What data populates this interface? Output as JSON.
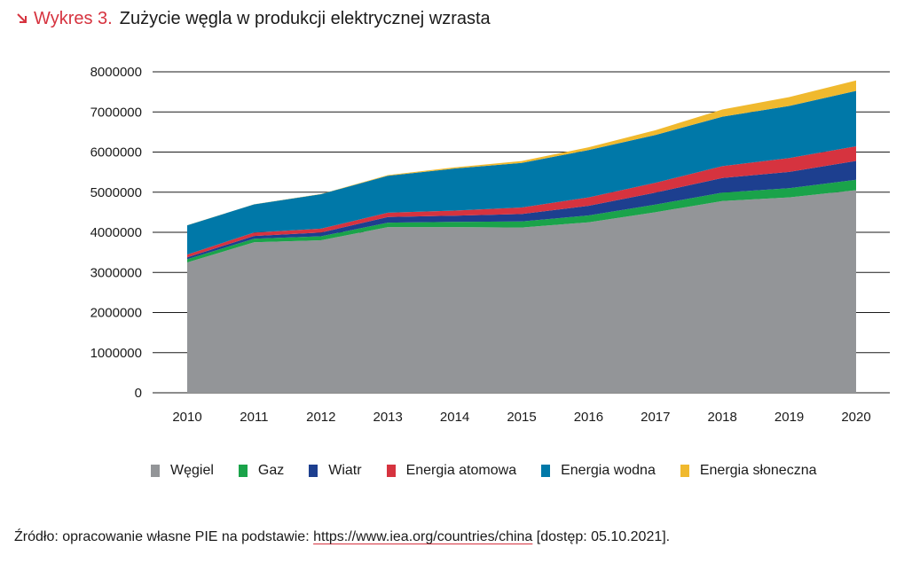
{
  "header": {
    "prefix": "Wykres 3.",
    "title": "Zużycie węgla w produkcji elektrycznej wzrasta",
    "accent_color": "#d6333f",
    "icon": "arrow-down-right-icon"
  },
  "chart_data": {
    "type": "area",
    "stacked": true,
    "title": "Zużycie węgla w produkcji elektrycznej wzrasta",
    "x": [
      "2010",
      "2011",
      "2012",
      "2013",
      "2014",
      "2015",
      "2016",
      "2017",
      "2018",
      "2019",
      "2020"
    ],
    "ylim": [
      0,
      8000000
    ],
    "yticks": [
      "0",
      "1000000",
      "2000000",
      "3000000",
      "4000000",
      "5000000",
      "6000000",
      "7000000",
      "8000000"
    ],
    "grid": true,
    "legend_position": "bottom",
    "series": [
      {
        "name": "Węgiel",
        "color": "#939598",
        "values": [
          3250000,
          3750000,
          3800000,
          4130000,
          4130000,
          4120000,
          4250000,
          4500000,
          4780000,
          4870000,
          5050000
        ]
      },
      {
        "name": "Gaz",
        "color": "#1aa34a",
        "values": [
          80000,
          90000,
          100000,
          110000,
          130000,
          150000,
          170000,
          190000,
          210000,
          230000,
          260000
        ]
      },
      {
        "name": "Wiatr",
        "color": "#1d3f8f",
        "values": [
          45000,
          70000,
          95000,
          140000,
          155000,
          185000,
          240000,
          300000,
          365000,
          405000,
          470000
        ]
      },
      {
        "name": "Energia atomowa",
        "color": "#d6333f",
        "values": [
          70000,
          85000,
          95000,
          110000,
          125000,
          165000,
          210000,
          245000,
          295000,
          345000,
          365000
        ]
      },
      {
        "name": "Energia wodna",
        "color": "#0078a8",
        "values": [
          730000,
          700000,
          860000,
          920000,
          1050000,
          1110000,
          1180000,
          1190000,
          1230000,
          1300000,
          1380000
        ]
      },
      {
        "name": "Energia słoneczna",
        "color": "#f0b92e",
        "values": [
          1000,
          3000,
          5000,
          15000,
          30000,
          45000,
          70000,
          120000,
          180000,
          220000,
          260000
        ]
      }
    ]
  },
  "source": {
    "prefix": "Źródło: opracowanie własne PIE na podstawie:",
    "link": "https://www.iea.org/countries/china",
    "suffix": "[dostęp: 05.10.2021]."
  }
}
